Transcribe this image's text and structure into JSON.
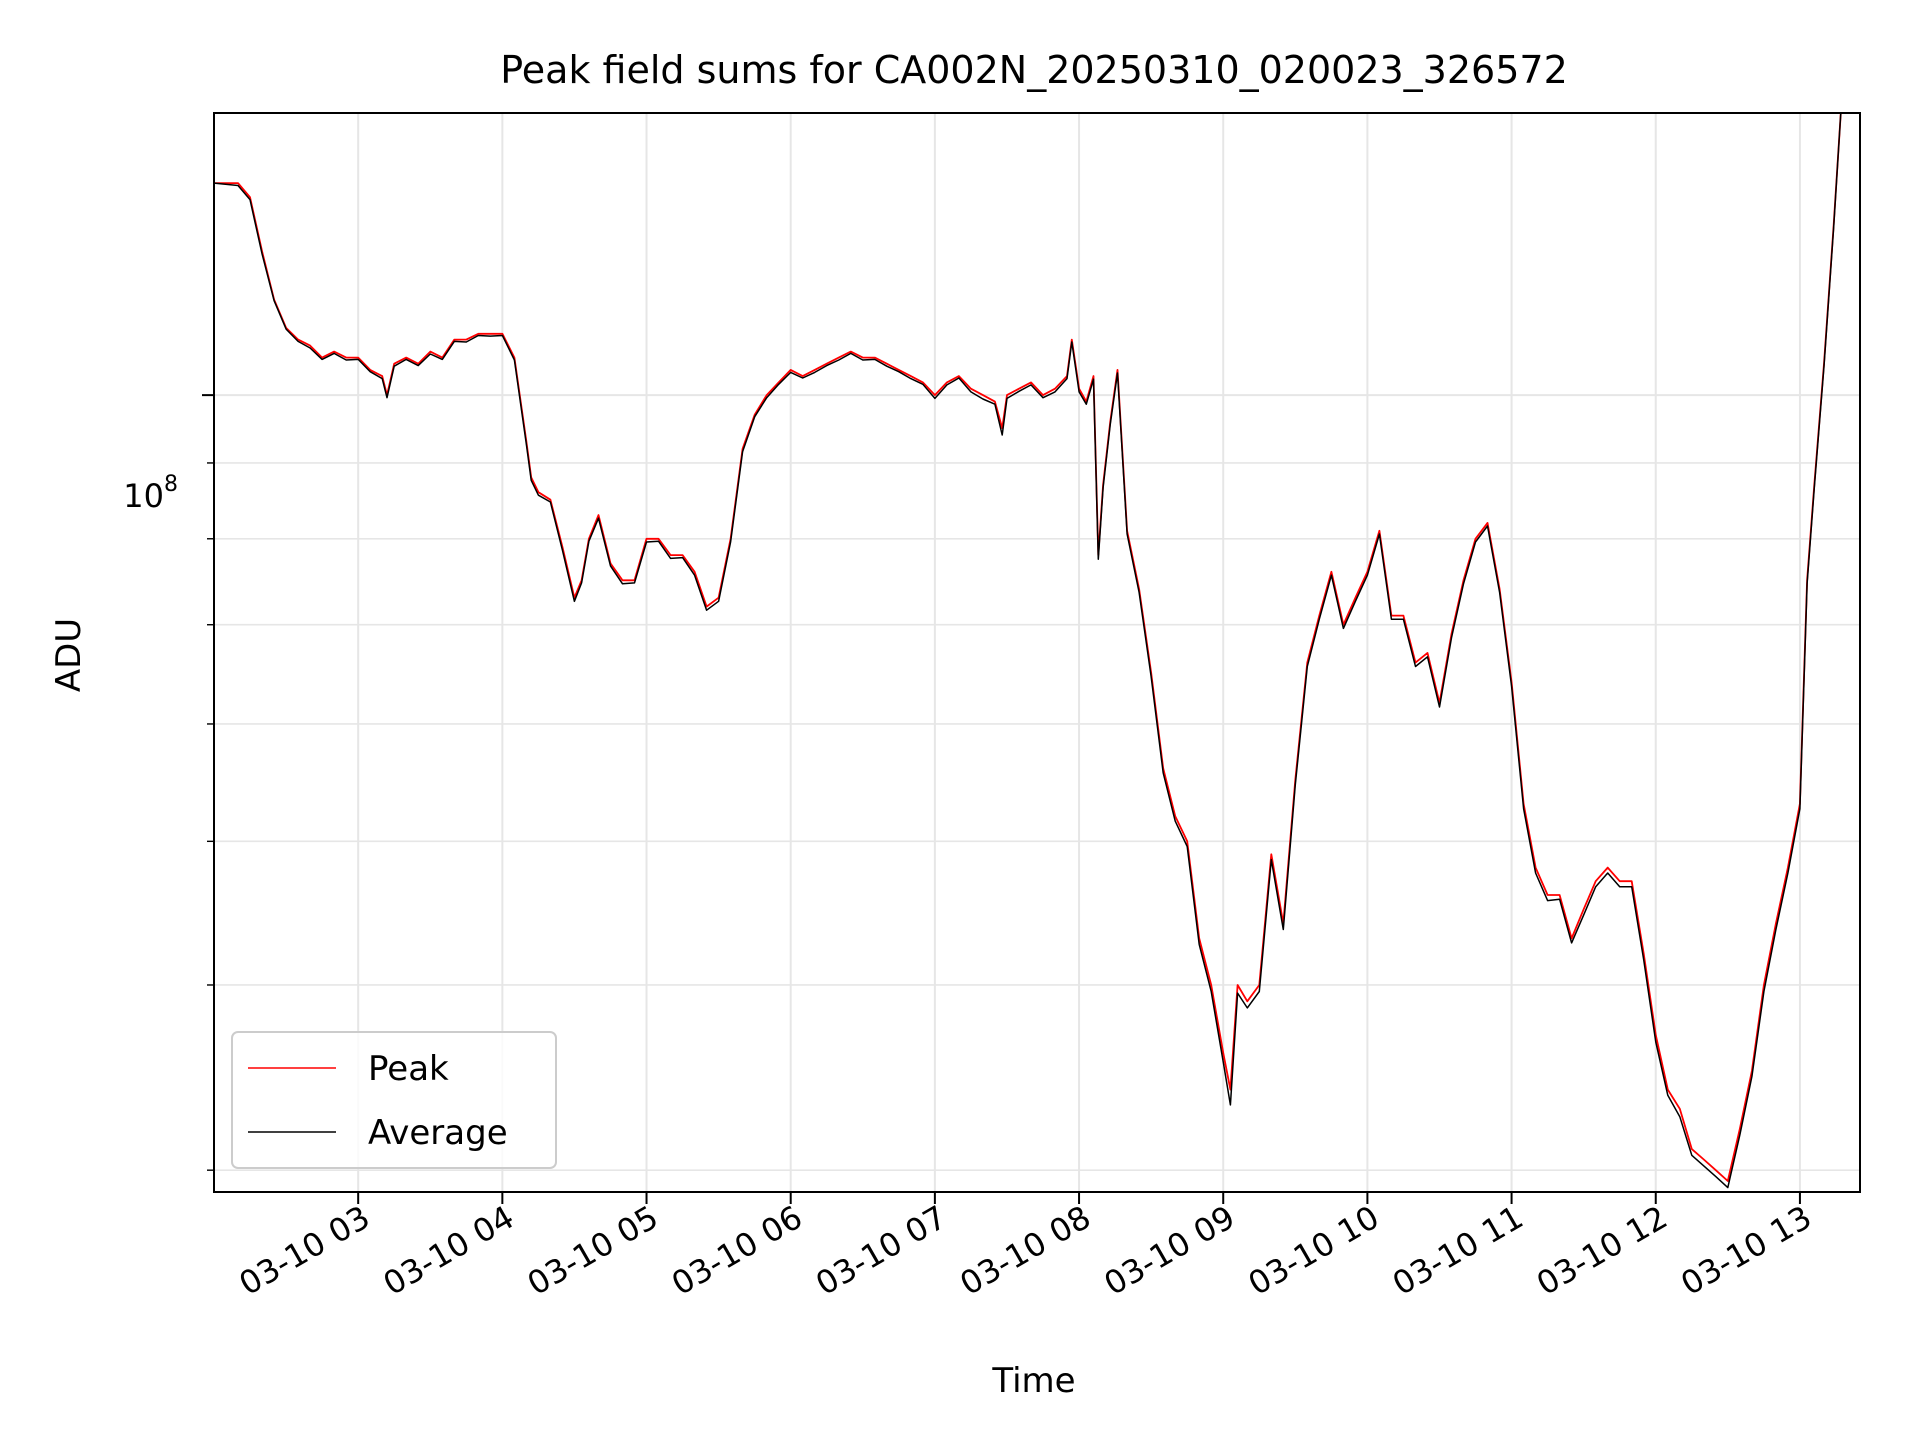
{
  "chart_data": {
    "type": "line",
    "title": "Peak field sums for CA002N_20250310_020023_326572",
    "xlabel": "Time",
    "ylabel": "ADU",
    "y_scale": "log",
    "grid": true,
    "legend_position": "lower-left",
    "x_ticks": [
      "03-10 03",
      "03-10 04",
      "03-10 05",
      "03-10 06",
      "03-10 07",
      "03-10 08",
      "03-10 09",
      "03-10 10",
      "03-10 11",
      "03-10 12",
      "03-10 13"
    ],
    "x_tick_times": [
      "2025-03-10 03:00",
      "2025-03-10 04:00",
      "2025-03-10 05:00",
      "2025-03-10 06:00",
      "2025-03-10 07:00",
      "2025-03-10 08:00",
      "2025-03-10 09:00",
      "2025-03-10 10:00",
      "2025-03-10 11:00",
      "2025-03-10 12:00",
      "2025-03-10 13:00"
    ],
    "xlim": [
      "2025-03-10 02:00",
      "2025-03-10 13:25"
    ],
    "ylim": [
      29000000,
      155000000
    ],
    "y_major_tick": {
      "value": 100000000,
      "label_base": "10",
      "label_exp": "8"
    },
    "y_minor_ticks": [
      30000000,
      40000000,
      50000000,
      60000000,
      70000000,
      80000000,
      90000000,
      200000000
    ],
    "series": [
      {
        "name": "Peak",
        "color": "#ff0000",
        "x": [
          "2025-03-10 02:00",
          "2025-03-10 02:10",
          "2025-03-10 02:15",
          "2025-03-10 02:20",
          "2025-03-10 02:25",
          "2025-03-10 02:30",
          "2025-03-10 02:35",
          "2025-03-10 02:40",
          "2025-03-10 02:45",
          "2025-03-10 02:50",
          "2025-03-10 02:55",
          "2025-03-10 03:00",
          "2025-03-10 03:05",
          "2025-03-10 03:10",
          "2025-03-10 03:12",
          "2025-03-10 03:15",
          "2025-03-10 03:20",
          "2025-03-10 03:25",
          "2025-03-10 03:30",
          "2025-03-10 03:35",
          "2025-03-10 03:40",
          "2025-03-10 03:45",
          "2025-03-10 03:50",
          "2025-03-10 03:55",
          "2025-03-10 04:00",
          "2025-03-10 04:05",
          "2025-03-10 04:10",
          "2025-03-10 04:12",
          "2025-03-10 04:15",
          "2025-03-10 04:20",
          "2025-03-10 04:25",
          "2025-03-10 04:30",
          "2025-03-10 04:33",
          "2025-03-10 04:36",
          "2025-03-10 04:40",
          "2025-03-10 04:45",
          "2025-03-10 04:50",
          "2025-03-10 04:55",
          "2025-03-10 05:00",
          "2025-03-10 05:05",
          "2025-03-10 05:10",
          "2025-03-10 05:15",
          "2025-03-10 05:20",
          "2025-03-10 05:25",
          "2025-03-10 05:30",
          "2025-03-10 05:35",
          "2025-03-10 05:40",
          "2025-03-10 05:45",
          "2025-03-10 05:50",
          "2025-03-10 05:55",
          "2025-03-10 06:00",
          "2025-03-10 06:05",
          "2025-03-10 06:10",
          "2025-03-10 06:15",
          "2025-03-10 06:20",
          "2025-03-10 06:25",
          "2025-03-10 06:30",
          "2025-03-10 06:35",
          "2025-03-10 06:40",
          "2025-03-10 06:45",
          "2025-03-10 06:50",
          "2025-03-10 06:55",
          "2025-03-10 07:00",
          "2025-03-10 07:05",
          "2025-03-10 07:10",
          "2025-03-10 07:15",
          "2025-03-10 07:20",
          "2025-03-10 07:25",
          "2025-03-10 07:28",
          "2025-03-10 07:30",
          "2025-03-10 07:35",
          "2025-03-10 07:40",
          "2025-03-10 07:45",
          "2025-03-10 07:50",
          "2025-03-10 07:55",
          "2025-03-10 07:57",
          "2025-03-10 08:00",
          "2025-03-10 08:03",
          "2025-03-10 08:06",
          "2025-03-10 08:08",
          "2025-03-10 08:10",
          "2025-03-10 08:13",
          "2025-03-10 08:16",
          "2025-03-10 08:20",
          "2025-03-10 08:25",
          "2025-03-10 08:30",
          "2025-03-10 08:35",
          "2025-03-10 08:40",
          "2025-03-10 08:45",
          "2025-03-10 08:50",
          "2025-03-10 08:55",
          "2025-03-10 09:00",
          "2025-03-10 09:03",
          "2025-03-10 09:06",
          "2025-03-10 09:10",
          "2025-03-10 09:15",
          "2025-03-10 09:20",
          "2025-03-10 09:25",
          "2025-03-10 09:30",
          "2025-03-10 09:35",
          "2025-03-10 09:40",
          "2025-03-10 09:45",
          "2025-03-10 09:50",
          "2025-03-10 09:55",
          "2025-03-10 10:00",
          "2025-03-10 10:05",
          "2025-03-10 10:10",
          "2025-03-10 10:15",
          "2025-03-10 10:20",
          "2025-03-10 10:25",
          "2025-03-10 10:30",
          "2025-03-10 10:35",
          "2025-03-10 10:40",
          "2025-03-10 10:45",
          "2025-03-10 10:50",
          "2025-03-10 10:55",
          "2025-03-10 11:00",
          "2025-03-10 11:05",
          "2025-03-10 11:10",
          "2025-03-10 11:15",
          "2025-03-10 11:20",
          "2025-03-10 11:25",
          "2025-03-10 11:30",
          "2025-03-10 11:35",
          "2025-03-10 11:40",
          "2025-03-10 11:45",
          "2025-03-10 11:50",
          "2025-03-10 11:55",
          "2025-03-10 12:00",
          "2025-03-10 12:05",
          "2025-03-10 12:10",
          "2025-03-10 12:15",
          "2025-03-10 12:20",
          "2025-03-10 12:25",
          "2025-03-10 12:30",
          "2025-03-10 12:35",
          "2025-03-10 12:40",
          "2025-03-10 12:45",
          "2025-03-10 12:50",
          "2025-03-10 12:55",
          "2025-03-10 13:00",
          "2025-03-10 13:03",
          "2025-03-10 13:06",
          "2025-03-10 13:10",
          "2025-03-10 13:14",
          "2025-03-10 13:17"
        ],
        "y": [
          139000000,
          139000000,
          136000000,
          125000000,
          116000000,
          111000000,
          109000000,
          108000000,
          106000000,
          107000000,
          106000000,
          106000000,
          104000000,
          103000000,
          100000000,
          105000000,
          106000000,
          105000000,
          107000000,
          106000000,
          109000000,
          109000000,
          110000000,
          110000000,
          110000000,
          106000000,
          93000000,
          88000000,
          86000000,
          85000000,
          79000000,
          73000000,
          75000000,
          80000000,
          83000000,
          77000000,
          75000000,
          75000000,
          80000000,
          80000000,
          78000000,
          78000000,
          76000000,
          72000000,
          73000000,
          80000000,
          92000000,
          97000000,
          100000000,
          102000000,
          104000000,
          103000000,
          104000000,
          105000000,
          106000000,
          107000000,
          106000000,
          106000000,
          105000000,
          104000000,
          103000000,
          102000000,
          100000000,
          102000000,
          103000000,
          101000000,
          100000000,
          99000000,
          95000000,
          100000000,
          101000000,
          102000000,
          100000000,
          101000000,
          103000000,
          109000000,
          101000000,
          99000000,
          103000000,
          78000000,
          87000000,
          96000000,
          104000000,
          81000000,
          74000000,
          65000000,
          56000000,
          52000000,
          50000000,
          43000000,
          40000000,
          36000000,
          34000000,
          40000000,
          39000000,
          40000000,
          49000000,
          44000000,
          55000000,
          66000000,
          71000000,
          76000000,
          70000000,
          73000000,
          76000000,
          81000000,
          71000000,
          71000000,
          66000000,
          67000000,
          62000000,
          69000000,
          75000000,
          80000000,
          82000000,
          74000000,
          64000000,
          53000000,
          48000000,
          46000000,
          46000000,
          43000000,
          45000000,
          47000000,
          48000000,
          47000000,
          47000000,
          42000000,
          37000000,
          34000000,
          33000000,
          31000000,
          30500000,
          30000000,
          29500000,
          32000000,
          35000000,
          40000000,
          44000000,
          48000000,
          53000000,
          75000000,
          87000000,
          105000000,
          130000000,
          155000000
        ]
      },
      {
        "name": "Average",
        "color": "#000000",
        "x": [
          "2025-03-10 02:00",
          "2025-03-10 02:10",
          "2025-03-10 02:15",
          "2025-03-10 02:20",
          "2025-03-10 02:25",
          "2025-03-10 02:30",
          "2025-03-10 02:35",
          "2025-03-10 02:40",
          "2025-03-10 02:45",
          "2025-03-10 02:50",
          "2025-03-10 02:55",
          "2025-03-10 03:00",
          "2025-03-10 03:05",
          "2025-03-10 03:10",
          "2025-03-10 03:12",
          "2025-03-10 03:15",
          "2025-03-10 03:20",
          "2025-03-10 03:25",
          "2025-03-10 03:30",
          "2025-03-10 03:35",
          "2025-03-10 03:40",
          "2025-03-10 03:45",
          "2025-03-10 03:50",
          "2025-03-10 03:55",
          "2025-03-10 04:00",
          "2025-03-10 04:05",
          "2025-03-10 04:10",
          "2025-03-10 04:12",
          "2025-03-10 04:15",
          "2025-03-10 04:20",
          "2025-03-10 04:25",
          "2025-03-10 04:30",
          "2025-03-10 04:33",
          "2025-03-10 04:36",
          "2025-03-10 04:40",
          "2025-03-10 04:45",
          "2025-03-10 04:50",
          "2025-03-10 04:55",
          "2025-03-10 05:00",
          "2025-03-10 05:05",
          "2025-03-10 05:10",
          "2025-03-10 05:15",
          "2025-03-10 05:20",
          "2025-03-10 05:25",
          "2025-03-10 05:30",
          "2025-03-10 05:35",
          "2025-03-10 05:40",
          "2025-03-10 05:45",
          "2025-03-10 05:50",
          "2025-03-10 05:55",
          "2025-03-10 06:00",
          "2025-03-10 06:05",
          "2025-03-10 06:10",
          "2025-03-10 06:15",
          "2025-03-10 06:20",
          "2025-03-10 06:25",
          "2025-03-10 06:30",
          "2025-03-10 06:35",
          "2025-03-10 06:40",
          "2025-03-10 06:45",
          "2025-03-10 06:50",
          "2025-03-10 06:55",
          "2025-03-10 07:00",
          "2025-03-10 07:05",
          "2025-03-10 07:10",
          "2025-03-10 07:15",
          "2025-03-10 07:20",
          "2025-03-10 07:25",
          "2025-03-10 07:28",
          "2025-03-10 07:30",
          "2025-03-10 07:35",
          "2025-03-10 07:40",
          "2025-03-10 07:45",
          "2025-03-10 07:50",
          "2025-03-10 07:55",
          "2025-03-10 07:57",
          "2025-03-10 08:00",
          "2025-03-10 08:03",
          "2025-03-10 08:06",
          "2025-03-10 08:08",
          "2025-03-10 08:10",
          "2025-03-10 08:13",
          "2025-03-10 08:16",
          "2025-03-10 08:20",
          "2025-03-10 08:25",
          "2025-03-10 08:30",
          "2025-03-10 08:35",
          "2025-03-10 08:40",
          "2025-03-10 08:45",
          "2025-03-10 08:50",
          "2025-03-10 08:55",
          "2025-03-10 09:00",
          "2025-03-10 09:03",
          "2025-03-10 09:06",
          "2025-03-10 09:10",
          "2025-03-10 09:15",
          "2025-03-10 09:20",
          "2025-03-10 09:25",
          "2025-03-10 09:30",
          "2025-03-10 09:35",
          "2025-03-10 09:40",
          "2025-03-10 09:45",
          "2025-03-10 09:50",
          "2025-03-10 09:55",
          "2025-03-10 10:00",
          "2025-03-10 10:05",
          "2025-03-10 10:10",
          "2025-03-10 10:15",
          "2025-03-10 10:20",
          "2025-03-10 10:25",
          "2025-03-10 10:30",
          "2025-03-10 10:35",
          "2025-03-10 10:40",
          "2025-03-10 10:45",
          "2025-03-10 10:50",
          "2025-03-10 10:55",
          "2025-03-10 11:00",
          "2025-03-10 11:05",
          "2025-03-10 11:10",
          "2025-03-10 11:15",
          "2025-03-10 11:20",
          "2025-03-10 11:25",
          "2025-03-10 11:30",
          "2025-03-10 11:35",
          "2025-03-10 11:40",
          "2025-03-10 11:45",
          "2025-03-10 11:50",
          "2025-03-10 11:55",
          "2025-03-10 12:00",
          "2025-03-10 12:05",
          "2025-03-10 12:10",
          "2025-03-10 12:15",
          "2025-03-10 12:20",
          "2025-03-10 12:25",
          "2025-03-10 12:30",
          "2025-03-10 12:35",
          "2025-03-10 12:40",
          "2025-03-10 12:45",
          "2025-03-10 12:50",
          "2025-03-10 12:55",
          "2025-03-10 13:00",
          "2025-03-10 13:03",
          "2025-03-10 13:06",
          "2025-03-10 13:10",
          "2025-03-10 13:14",
          "2025-03-10 13:17"
        ],
        "y": [
          139000000,
          138500000,
          135500000,
          124500000,
          115800000,
          110800000,
          108700000,
          107600000,
          105700000,
          106700000,
          105600000,
          105700000,
          103700000,
          102600000,
          99600000,
          104600000,
          105700000,
          104700000,
          106600000,
          105700000,
          108700000,
          108600000,
          109700000,
          109600000,
          109700000,
          105600000,
          92600000,
          87600000,
          85600000,
          84700000,
          78600000,
          72600000,
          74700000,
          79700000,
          82600000,
          76700000,
          74600000,
          74700000,
          79600000,
          79700000,
          77600000,
          77700000,
          75600000,
          71600000,
          72600000,
          79600000,
          91600000,
          96700000,
          99600000,
          101700000,
          103600000,
          102700000,
          103600000,
          104700000,
          105600000,
          106700000,
          105600000,
          105700000,
          104600000,
          103700000,
          102600000,
          101700000,
          99500000,
          101600000,
          102700000,
          100500000,
          99400000,
          98600000,
          94000000,
          99500000,
          100600000,
          101600000,
          99600000,
          100500000,
          102600000,
          108600000,
          100500000,
          98600000,
          102500000,
          77500000,
          86600000,
          95600000,
          103500000,
          80600000,
          73600000,
          64600000,
          55600000,
          51600000,
          49600000,
          42600000,
          39600000,
          35500000,
          33200000,
          39500000,
          38600000,
          39600000,
          48600000,
          43600000,
          54600000,
          65600000,
          70600000,
          75600000,
          69600000,
          72600000,
          75600000,
          80600000,
          70600000,
          70600000,
          65600000,
          66600000,
          61600000,
          68600000,
          74600000,
          79600000,
          81600000,
          73600000,
          63600000,
          52600000,
          47600000,
          45600000,
          45700000,
          42700000,
          44600000,
          46600000,
          47600000,
          46600000,
          46600000,
          41600000,
          36600000,
          33700000,
          32600000,
          30700000,
          30200000,
          29700000,
          29200000,
          31700000,
          34700000,
          39600000,
          43600000,
          47600000,
          52600000,
          74600000,
          86600000,
          104600000,
          129600000,
          155000000
        ]
      }
    ]
  }
}
